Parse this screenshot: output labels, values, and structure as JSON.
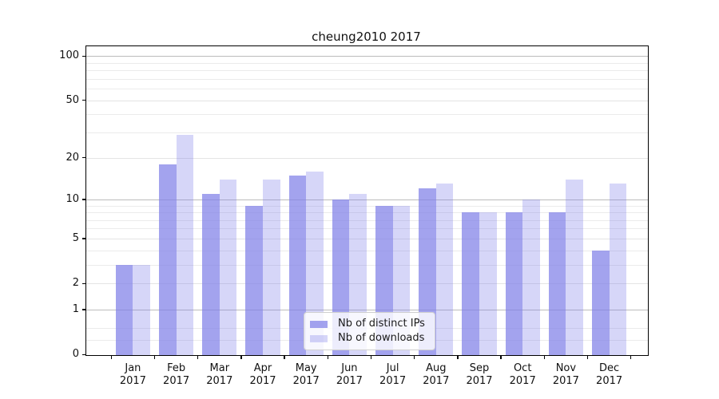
{
  "title": "cheung2010 2017",
  "chart_data": {
    "type": "bar",
    "title": "cheung2010 2017",
    "categories": [
      "Jan 2017",
      "Feb 2017",
      "Mar 2017",
      "Apr 2017",
      "May 2017",
      "Jun 2017",
      "Jul 2017",
      "Aug 2017",
      "Sep 2017",
      "Oct 2017",
      "Nov 2017",
      "Dec 2017"
    ],
    "x_months": [
      "Jan",
      "Feb",
      "Mar",
      "Apr",
      "May",
      "Jun",
      "Jul",
      "Aug",
      "Sep",
      "Oct",
      "Nov",
      "Dec"
    ],
    "x_year": "2017",
    "series": [
      {
        "name": "Nb of distinct IPs",
        "color": "rgba(128,128,232,0.72)",
        "values": [
          3,
          18,
          11,
          9,
          15,
          10,
          9,
          12,
          8,
          8,
          8,
          4
        ]
      },
      {
        "name": "Nb of downloads",
        "color": "rgba(128,128,232,0.32)",
        "values": [
          3,
          29,
          14,
          14,
          16,
          11,
          9,
          13,
          8,
          10,
          14,
          13
        ]
      }
    ],
    "yscale": "log1p",
    "ylim": [
      0,
      116
    ],
    "y_ticks": [
      0,
      1,
      2,
      5,
      10,
      20,
      50,
      100
    ],
    "y_major_gridlines": [
      1,
      10,
      100
    ],
    "y_mid_gridlines": [
      2,
      5,
      20,
      50
    ],
    "y_minor_gridlines": [
      0.25,
      0.5,
      3,
      4,
      6,
      7,
      8,
      9,
      30,
      40,
      60,
      70,
      80,
      90
    ],
    "xlabel": "",
    "ylabel": "",
    "grid": true,
    "legend_position": "lower center",
    "background": "#ffffff",
    "axis_color": "#000000",
    "major_grid_color": "#bcbcbc",
    "minor_grid_color": "#ebebeb"
  },
  "legend": {
    "items": [
      {
        "label": "Nb of distinct IPs"
      },
      {
        "label": "Nb of downloads"
      }
    ]
  }
}
